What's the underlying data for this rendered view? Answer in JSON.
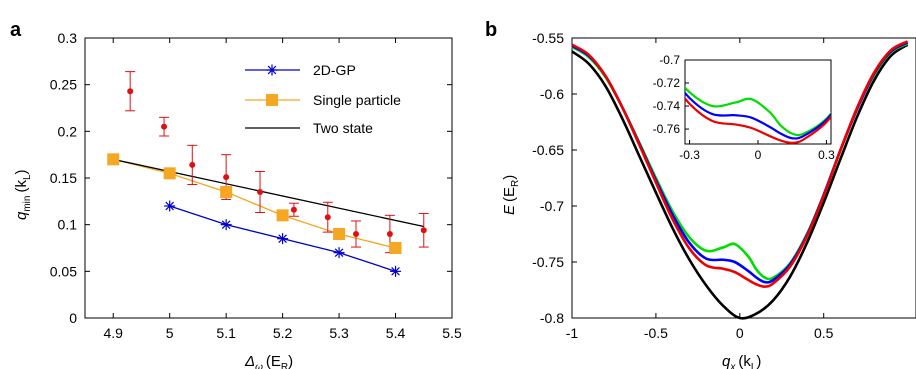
{
  "figure": {
    "panel_a_label": "a",
    "panel_b_label": "b"
  },
  "chart_data": [
    {
      "type": "line",
      "panel": "a",
      "xlabel_main": "Δ",
      "xlabel_sub": "ω",
      "xlabel_unit_open": "(E",
      "xlabel_unit_sub": "R",
      "xlabel_unit_close": ")",
      "ylabel_main": "q",
      "ylabel_sub": "min",
      "ylabel_unit_open": "(k",
      "ylabel_unit_sub": "L",
      "ylabel_unit_close": ")",
      "xlim": [
        4.85,
        5.5
      ],
      "ylim": [
        0,
        0.3
      ],
      "xticks": [
        "4.9",
        "5",
        "5.1",
        "5.2",
        "5.3",
        "5.4",
        "5.5"
      ],
      "yticks": [
        "0",
        "0.05",
        "0.1",
        "0.15",
        "0.2",
        "0.25",
        "0.3"
      ],
      "legend_position": "top-right",
      "series": [
        {
          "name": "2D-GP",
          "color": "#0000cc",
          "marker": "asterisk",
          "x": [
            5.0,
            5.1,
            5.2,
            5.3,
            5.4
          ],
          "y": [
            0.12,
            0.1,
            0.085,
            0.07,
            0.05
          ]
        },
        {
          "name": "Single particle",
          "color": "#f5a623",
          "marker": "square",
          "x": [
            4.9,
            5.0,
            5.1,
            5.2,
            5.3,
            5.4
          ],
          "y": [
            0.17,
            0.155,
            0.135,
            0.11,
            0.09,
            0.075
          ]
        },
        {
          "name": "Two state",
          "color": "#000000",
          "marker": "none",
          "x": [
            4.9,
            5.45
          ],
          "y": [
            0.17,
            0.098
          ]
        }
      ],
      "experiment": {
        "color": "#dd1111",
        "x": [
          4.93,
          4.99,
          5.04,
          5.1,
          5.16,
          5.22,
          5.28,
          5.33,
          5.39,
          5.45
        ],
        "y": [
          0.243,
          0.205,
          0.164,
          0.151,
          0.135,
          0.116,
          0.108,
          0.09,
          0.09,
          0.094
        ],
        "err": [
          0.021,
          0.01,
          0.021,
          0.024,
          0.022,
          0.007,
          0.016,
          0.014,
          0.02,
          0.018
        ]
      }
    },
    {
      "type": "line",
      "panel": "b",
      "xlabel_main": "q",
      "xlabel_sub": "x",
      "xlabel_unit_open": "(k",
      "xlabel_unit_sub": "L",
      "xlabel_unit_close": ")",
      "ylabel_main": "E",
      "ylabel_unit_open": "(E",
      "ylabel_unit_sub": "R",
      "ylabel_unit_close": ")",
      "xlim": [
        -1,
        1.05
      ],
      "ylim": [
        -0.8,
        -0.55
      ],
      "xticks": [
        "-1",
        "-0.5",
        "0",
        "0.5"
      ],
      "yticks": [
        "-0.8",
        "-0.75",
        "-0.7",
        "-0.65",
        "-0.6",
        "-0.55"
      ],
      "series": [
        {
          "color": "#000000",
          "x": [
            -1,
            -0.9,
            -0.8,
            -0.7,
            -0.6,
            -0.5,
            -0.4,
            -0.3,
            -0.2,
            -0.1,
            0,
            0.1,
            0.2,
            0.3,
            0.4,
            0.5,
            0.6,
            0.7,
            0.8,
            0.9,
            1.0
          ],
          "y": [
            -0.562,
            -0.573,
            -0.593,
            -0.622,
            -0.655,
            -0.688,
            -0.72,
            -0.748,
            -0.771,
            -0.789,
            -0.8,
            -0.796,
            -0.784,
            -0.763,
            -0.733,
            -0.697,
            -0.658,
            -0.62,
            -0.588,
            -0.566,
            -0.556
          ]
        },
        {
          "color": "#00dd00",
          "x": [
            -1,
            -0.9,
            -0.8,
            -0.7,
            -0.6,
            -0.5,
            -0.4,
            -0.3,
            -0.2,
            -0.1,
            -0.03,
            0.05,
            0.1,
            0.15,
            0.2,
            0.3,
            0.4,
            0.5,
            0.6,
            0.7,
            0.8,
            0.9,
            1.0
          ],
          "y": [
            -0.558,
            -0.567,
            -0.585,
            -0.612,
            -0.643,
            -0.675,
            -0.705,
            -0.728,
            -0.74,
            -0.737,
            -0.734,
            -0.745,
            -0.757,
            -0.764,
            -0.764,
            -0.751,
            -0.725,
            -0.69,
            -0.65,
            -0.613,
            -0.583,
            -0.563,
            -0.555
          ]
        },
        {
          "color": "#0000ff",
          "x": [
            -1,
            -0.9,
            -0.8,
            -0.7,
            -0.6,
            -0.5,
            -0.4,
            -0.3,
            -0.2,
            -0.1,
            -0.03,
            0.05,
            0.1,
            0.15,
            0.2,
            0.3,
            0.4,
            0.5,
            0.6,
            0.7,
            0.8,
            0.9,
            1.0
          ],
          "y": [
            -0.557,
            -0.566,
            -0.584,
            -0.612,
            -0.644,
            -0.677,
            -0.708,
            -0.733,
            -0.747,
            -0.748,
            -0.75,
            -0.758,
            -0.764,
            -0.768,
            -0.766,
            -0.752,
            -0.726,
            -0.69,
            -0.65,
            -0.613,
            -0.582,
            -0.562,
            -0.554
          ]
        },
        {
          "color": "#ee0000",
          "x": [
            -1,
            -0.9,
            -0.8,
            -0.7,
            -0.6,
            -0.5,
            -0.4,
            -0.3,
            -0.2,
            -0.1,
            -0.03,
            0.05,
            0.1,
            0.15,
            0.2,
            0.3,
            0.4,
            0.5,
            0.6,
            0.7,
            0.8,
            0.9,
            1.0
          ],
          "y": [
            -0.556,
            -0.565,
            -0.584,
            -0.612,
            -0.645,
            -0.679,
            -0.712,
            -0.738,
            -0.753,
            -0.756,
            -0.759,
            -0.766,
            -0.77,
            -0.772,
            -0.769,
            -0.754,
            -0.727,
            -0.691,
            -0.65,
            -0.612,
            -0.581,
            -0.561,
            -0.553
          ]
        }
      ],
      "inset": {
        "xlim": [
          -0.32,
          0.32
        ],
        "ylim": [
          -0.773,
          -0.7
        ],
        "xticks": [
          "-0.3",
          "0",
          "0.3"
        ],
        "yticks": [
          "-0.7",
          "-0.72",
          "-0.74",
          "-0.76"
        ]
      }
    }
  ]
}
